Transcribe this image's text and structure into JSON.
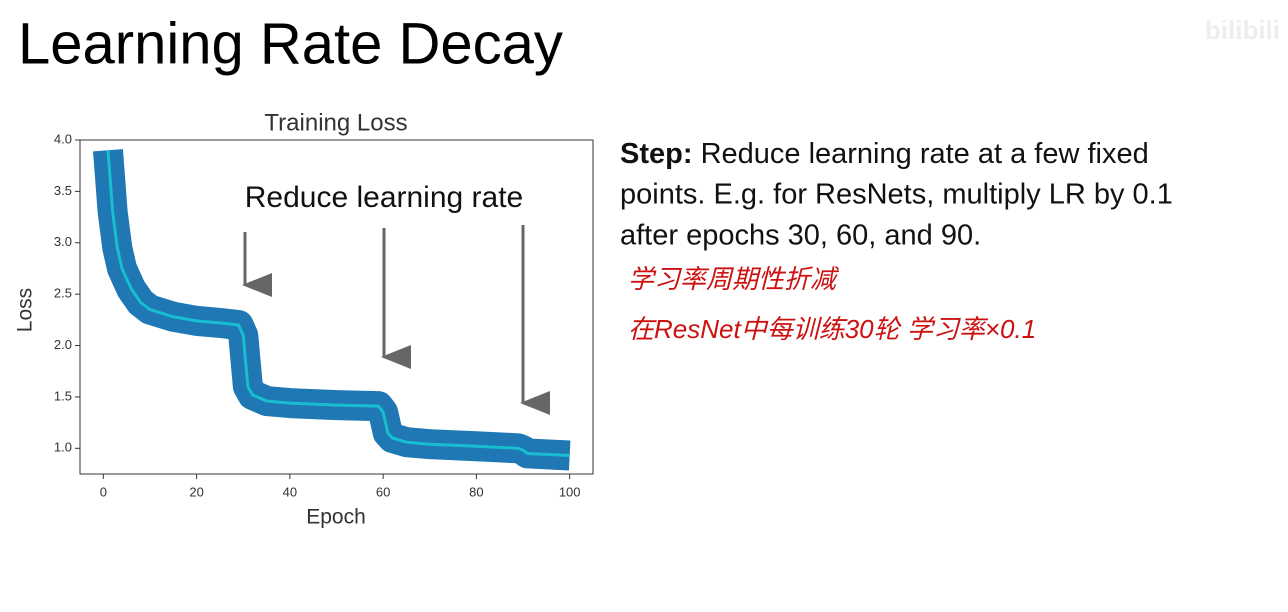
{
  "title": "Learning Rate Decay",
  "watermark": "bilibili",
  "chart_data": {
    "type": "line",
    "title": "Training Loss",
    "x_label": "Epoch",
    "y_label": "Loss",
    "annotation": "Reduce learning rate",
    "x": [
      1,
      2,
      3,
      4,
      6,
      8,
      10,
      15,
      20,
      25,
      29,
      30,
      31,
      32,
      35,
      40,
      50,
      59,
      60,
      61,
      62,
      65,
      70,
      80,
      89,
      90,
      91,
      100
    ],
    "series": [
      {
        "color": "#17becf",
        "band_color": "#1f77b4",
        "values": [
          3.9,
          3.3,
          2.95,
          2.75,
          2.55,
          2.42,
          2.35,
          2.28,
          2.24,
          2.22,
          2.2,
          2.1,
          1.6,
          1.52,
          1.46,
          1.44,
          1.42,
          1.41,
          1.35,
          1.15,
          1.1,
          1.06,
          1.04,
          1.02,
          1.0,
          0.98,
          0.95,
          0.93
        ]
      }
    ],
    "xlim": [
      -5,
      105
    ],
    "ylim": [
      0.75,
      4.0
    ],
    "xticks": [
      0,
      20,
      40,
      60,
      80,
      100
    ],
    "yticks": [
      {
        "value": 1.0,
        "label": "1.0"
      },
      {
        "value": 1.5,
        "label": "1.5"
      },
      {
        "value": 2.0,
        "label": "2.0"
      },
      {
        "value": 2.5,
        "label": "2.5"
      },
      {
        "value": 3.0,
        "label": "3.0"
      },
      {
        "value": 3.5,
        "label": "3.5"
      },
      {
        "value": 4.0,
        "label": "4.0"
      }
    ]
  },
  "notes": {
    "step_label": "Step:",
    "lines": [
      "Reduce learning rate at a few fixed",
      "points. E.g. for ResNets, multiply LR by 0.1",
      "after epochs 30, 60, and 90."
    ],
    "handwritten": [
      "学习率周期性折减",
      "在ResNet中每训练30轮 学习率×0.1"
    ]
  }
}
